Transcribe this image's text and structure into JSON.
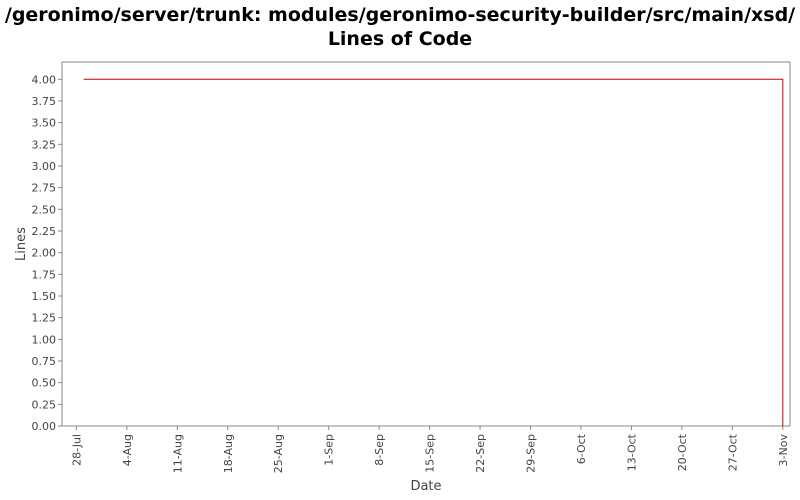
{
  "chart_data": {
    "type": "line",
    "title": "/geronimo/server/trunk: modules/geronimo-security-builder/src/main/xsd/",
    "subtitle": "Lines of Code",
    "xlabel": "Date",
    "ylabel": "Lines",
    "x_tick_labels": [
      "28-Jul",
      "4-Aug",
      "11-Aug",
      "18-Aug",
      "25-Aug",
      "1-Sep",
      "8-Sep",
      "15-Sep",
      "22-Sep",
      "29-Sep",
      "6-Oct",
      "13-Oct",
      "20-Oct",
      "27-Oct",
      "3-Nov"
    ],
    "y_tick_labels": [
      "0.00",
      "0.25",
      "0.50",
      "0.75",
      "1.00",
      "1.25",
      "1.50",
      "1.75",
      "2.00",
      "2.25",
      "2.50",
      "2.75",
      "3.00",
      "3.25",
      "3.50",
      "3.75",
      "4.00"
    ],
    "ylim": [
      0,
      4.2
    ],
    "xlim": [
      "2005-07-26",
      "2005-11-04"
    ],
    "grid": false,
    "series": [
      {
        "color": "#cc0000",
        "points": [
          {
            "x": "2005-07-29",
            "y": 4
          },
          {
            "x": "2005-11-03",
            "y": 4
          },
          {
            "x": "2005-11-03",
            "y": 0
          }
        ]
      }
    ]
  }
}
